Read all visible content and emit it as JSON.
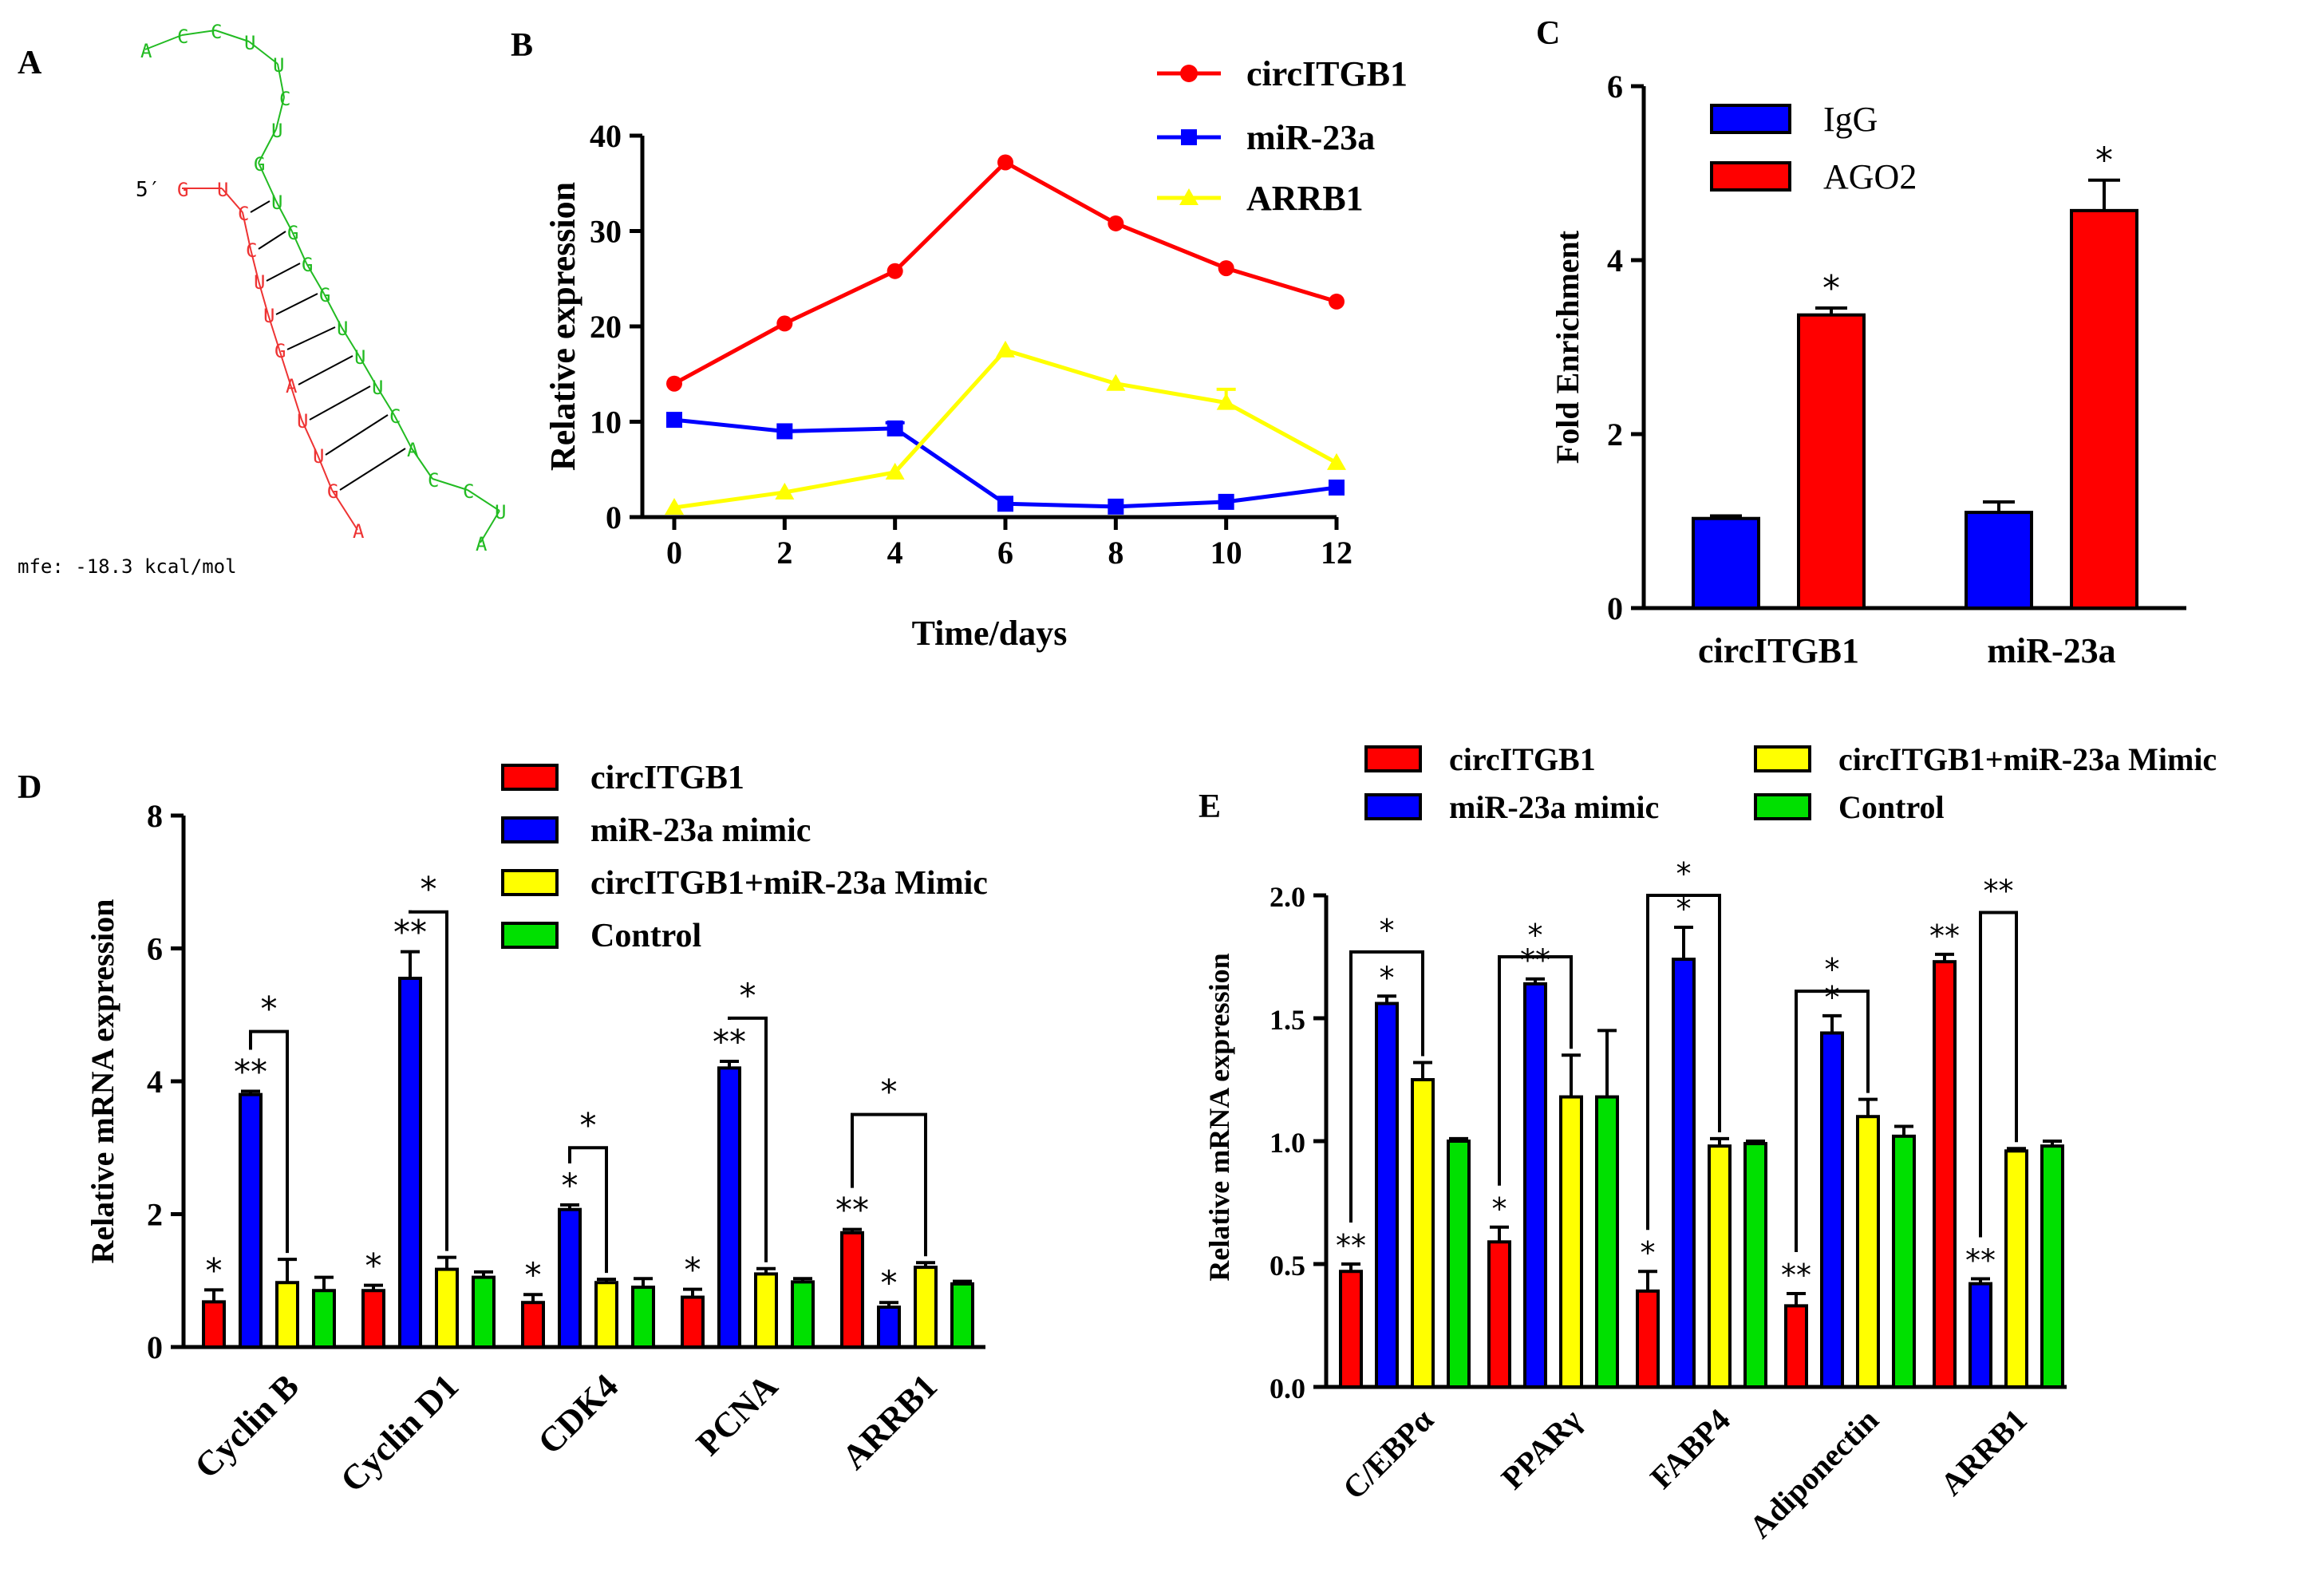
{
  "colors": {
    "red": "#ff0000",
    "blue": "#0000ff",
    "yellow": "#ffff00",
    "green": "#00e000",
    "rna_red": "#ee3333",
    "rna_green": "#22bb22"
  },
  "chart_data": [
    {
      "panel": "A",
      "type": "other",
      "description_label": "RNA duplex structure",
      "five_prime": "5′",
      "strand_red": [
        "G",
        "U",
        "C",
        "C",
        "U",
        "U",
        "G",
        "A",
        "U",
        "U",
        "G",
        "A"
      ],
      "strand_green": [
        "A",
        "C",
        "C",
        "U",
        "U",
        "C",
        "U",
        "G",
        "U",
        "G",
        "G",
        "G",
        "U",
        "U",
        "U",
        "C",
        "A",
        "C",
        "C",
        "U",
        "A"
      ],
      "mfe": "mfe: -18.3 kcal/mol"
    },
    {
      "panel": "B",
      "type": "line",
      "x": [
        0,
        2,
        4,
        6,
        8,
        10,
        12
      ],
      "series": [
        {
          "name": "circITGB1",
          "color": "#ff0000",
          "marker": "circle",
          "values": [
            14,
            20.3,
            25.8,
            37.2,
            30.8,
            26.1,
            22.6
          ],
          "err": [
            0.3,
            0.3,
            0.3,
            0.3,
            0.3,
            0.3,
            0.3
          ]
        },
        {
          "name": "miR-23a",
          "color": "#0000ff",
          "marker": "square",
          "values": [
            10.2,
            9.0,
            9.3,
            1.4,
            1.1,
            1.6,
            3.1
          ],
          "err": [
            0.4,
            0.4,
            0.6,
            0.3,
            0.2,
            0.3,
            0.4
          ]
        },
        {
          "name": "ARRB1",
          "color": "#ffff00",
          "marker": "triangle",
          "values": [
            1.0,
            2.6,
            4.7,
            17.5,
            14.0,
            12.0,
            5.7
          ],
          "err": [
            0.2,
            0.3,
            0.4,
            0.4,
            0.4,
            1.4,
            0.5
          ]
        }
      ],
      "xlabel": "Time/days",
      "ylabel": "Relative expression",
      "ylim": [
        0,
        40
      ],
      "yticks": [
        0,
        10,
        20,
        30,
        40
      ],
      "xticks": [
        0,
        2,
        4,
        6,
        8,
        10,
        12
      ],
      "legend_position": "top-right"
    },
    {
      "panel": "C",
      "type": "bar",
      "categories": [
        "circITGB1",
        "miR-23a"
      ],
      "series": [
        {
          "name": "IgG",
          "color": "#0000ff",
          "values": [
            1.03,
            1.1
          ],
          "err": [
            0.03,
            0.12
          ]
        },
        {
          "name": "AGO2",
          "color": "#ff0000",
          "values": [
            3.37,
            4.57
          ],
          "err": [
            0.08,
            0.35
          ]
        }
      ],
      "annotations": [
        {
          "category": 0,
          "series": 1,
          "text": "*"
        },
        {
          "category": 1,
          "series": 1,
          "text": "*"
        }
      ],
      "ylabel": "Fold Enrichment",
      "ylim": [
        0,
        6
      ],
      "yticks": [
        0,
        2,
        4,
        6
      ],
      "legend_position": "top-left"
    },
    {
      "panel": "D",
      "type": "bar",
      "categories": [
        "Cyclin B",
        "Cyclin D1",
        "CDK4",
        "PCNA",
        "ARRB1"
      ],
      "series": [
        {
          "name": "circITGB1",
          "color": "#ff0000",
          "values": [
            0.68,
            0.85,
            0.67,
            0.75,
            1.72
          ],
          "err": [
            0.18,
            0.08,
            0.12,
            0.12,
            0.05
          ]
        },
        {
          "name": "miR-23a mimic",
          "color": "#0000ff",
          "values": [
            3.8,
            5.55,
            2.07,
            4.2,
            0.6
          ],
          "err": [
            0.05,
            0.4,
            0.07,
            0.1,
            0.07
          ]
        },
        {
          "name": "circITGB1+miR-23a Mimic",
          "color": "#ffff00",
          "values": [
            0.97,
            1.17,
            0.97,
            1.1,
            1.2
          ],
          "err": [
            0.35,
            0.18,
            0.05,
            0.08,
            0.07
          ]
        },
        {
          "name": "Control",
          "color": "#00e000",
          "values": [
            0.85,
            1.05,
            0.9,
            0.98,
            0.95
          ],
          "err": [
            0.2,
            0.08,
            0.13,
            0.05,
            0.04
          ]
        }
      ],
      "bar_annotations": [
        {
          "category": 0,
          "series": 0,
          "text": "*"
        },
        {
          "category": 0,
          "series": 1,
          "text": "**"
        },
        {
          "category": 1,
          "series": 0,
          "text": "*"
        },
        {
          "category": 1,
          "series": 1,
          "text": "**"
        },
        {
          "category": 2,
          "series": 0,
          "text": "*"
        },
        {
          "category": 2,
          "series": 1,
          "text": "*"
        },
        {
          "category": 3,
          "series": 0,
          "text": "*"
        },
        {
          "category": 3,
          "series": 1,
          "text": "**"
        },
        {
          "category": 4,
          "series": 0,
          "text": "**"
        },
        {
          "category": 4,
          "series": 1,
          "text": "*"
        }
      ],
      "brackets": [
        {
          "category": 0,
          "from": 1,
          "to": 2,
          "y": 4.75,
          "text": "*"
        },
        {
          "category": 1,
          "from": 1,
          "to": 2,
          "y": 6.55,
          "text": "*"
        },
        {
          "category": 2,
          "from": 1,
          "to": 2,
          "y": 3.0,
          "text": "*"
        },
        {
          "category": 3,
          "from": 1,
          "to": 2,
          "y": 4.95,
          "text": "*"
        },
        {
          "category": 4,
          "from": 0,
          "to": 2,
          "y": 3.5,
          "text": "*"
        }
      ],
      "ylabel": "Relative mRNA expression",
      "ylim": [
        0,
        8
      ],
      "yticks": [
        0,
        2,
        4,
        6,
        8
      ],
      "legend_position": "top-center"
    },
    {
      "panel": "E",
      "type": "bar",
      "categories": [
        "C/EBPα",
        "PPARγ",
        "FABP4",
        "Adiponectin",
        "ARRB1"
      ],
      "series": [
        {
          "name": "circITGB1",
          "color": "#ff0000",
          "values": [
            0.47,
            0.59,
            0.39,
            0.33,
            1.73
          ],
          "err": [
            0.03,
            0.06,
            0.08,
            0.05,
            0.03
          ]
        },
        {
          "name": "miR-23a mimic",
          "color": "#0000ff",
          "values": [
            1.56,
            1.64,
            1.74,
            1.44,
            0.42
          ],
          "err": [
            0.03,
            0.02,
            0.13,
            0.07,
            0.02
          ]
        },
        {
          "name": "circITGB1+miR-23a Mimic",
          "color": "#ffff00",
          "values": [
            1.25,
            1.18,
            0.98,
            1.1,
            0.96
          ],
          "err": [
            0.07,
            0.17,
            0.03,
            0.07,
            0.01
          ]
        },
        {
          "name": "Control",
          "color": "#00e000",
          "values": [
            1.0,
            1.18,
            0.99,
            1.02,
            0.98
          ],
          "err": [
            0.01,
            0.27,
            0.01,
            0.04,
            0.02
          ]
        }
      ],
      "bar_annotations": [
        {
          "category": 0,
          "series": 0,
          "text": "**"
        },
        {
          "category": 0,
          "series": 1,
          "text": "*"
        },
        {
          "category": 1,
          "series": 0,
          "text": "*"
        },
        {
          "category": 1,
          "series": 1,
          "text": "**"
        },
        {
          "category": 2,
          "series": 0,
          "text": "*"
        },
        {
          "category": 2,
          "series": 1,
          "text": "*"
        },
        {
          "category": 3,
          "series": 0,
          "text": "**"
        },
        {
          "category": 3,
          "series": 1,
          "text": "*"
        },
        {
          "category": 4,
          "series": 0,
          "text": "**"
        },
        {
          "category": 4,
          "series": 1,
          "text": "**"
        }
      ],
      "brackets": [
        {
          "category": 0,
          "from": 0,
          "to": 2,
          "y": 1.77,
          "text": "*"
        },
        {
          "category": 1,
          "from": 0,
          "to": 2,
          "y": 1.75,
          "text": "*"
        },
        {
          "category": 2,
          "from": 0,
          "to": 2,
          "y": 2.0,
          "text": "*"
        },
        {
          "category": 3,
          "from": 0,
          "to": 2,
          "y": 1.61,
          "text": "*"
        },
        {
          "category": 4,
          "from": 1,
          "to": 2,
          "y": 1.93,
          "text": "**"
        }
      ],
      "ylabel": "Relative mRNA expression",
      "ylim": [
        0,
        2.0
      ],
      "yticks": [
        "0.0",
        "0.5",
        "1.0",
        "1.5",
        "2.0"
      ],
      "legend_position": "top"
    }
  ]
}
